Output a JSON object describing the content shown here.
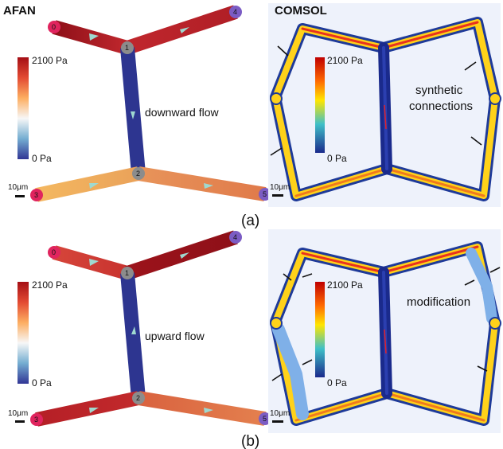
{
  "header": {
    "left_title": "AFAN",
    "right_title": "COMSOL"
  },
  "panel_a": {
    "caption": "(a)",
    "flow_label": "downward flow",
    "annotation": "synthetic connections",
    "colorbar_max": "2100 Pa",
    "colorbar_min": "0 Pa",
    "colorbar_max_right": "2100 Pa",
    "colorbar_min_right": "0 Pa",
    "scale_left": "10μm",
    "scale_right": "10μm",
    "nodes": [
      "0",
      "1",
      "2",
      "3",
      "4",
      "5"
    ]
  },
  "panel_b": {
    "caption": "(b)",
    "flow_label": "upward flow",
    "annotation": "modification",
    "colorbar_max": "2100 Pa",
    "colorbar_min": "0 Pa",
    "colorbar_max_right": "2100 Pa",
    "colorbar_min_right": "0 Pa",
    "scale_left": "10μm",
    "scale_right": "10μm",
    "nodes": [
      "0",
      "1",
      "2",
      "3",
      "4",
      "5"
    ]
  },
  "colors": {
    "pressure_high": "#a50f15",
    "pressure_mid": "#ffffbf",
    "pressure_low": "#313695",
    "node_gray": "#8c8c8c",
    "comsol_bg": "#eef2fb"
  }
}
